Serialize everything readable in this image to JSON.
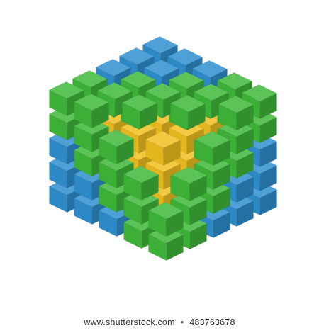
{
  "image": {
    "subject": "isometric-cube-of-colored-blocks",
    "layer_colors": [
      "#2f8fd0",
      "#3fb83a",
      "#f0c020",
      "#f07a20",
      "#e8282c"
    ],
    "background": "#ffffff"
  },
  "footer": {
    "site": "www.shutterstock.com",
    "separator": "•",
    "id_text": "483763678"
  }
}
